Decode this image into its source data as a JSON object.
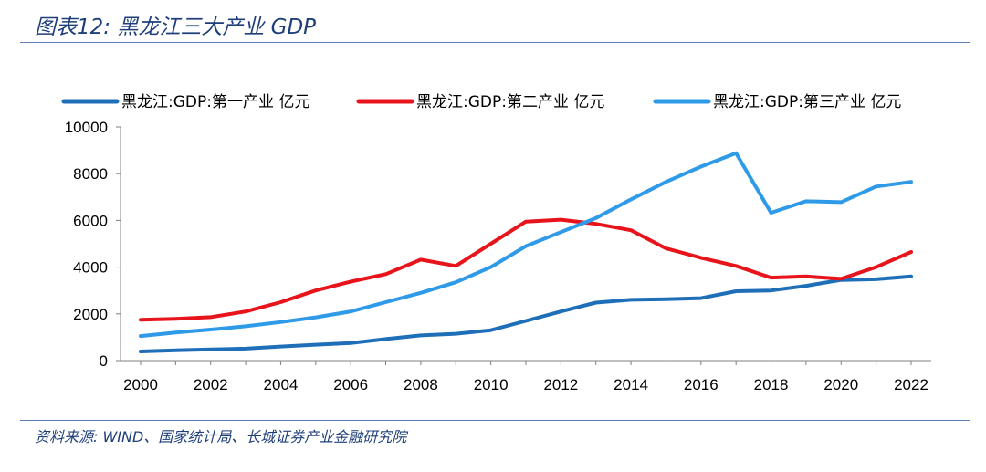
{
  "header": {
    "title": "图表12:  黑龙江三大产业 GDP"
  },
  "footer": {
    "source": "资料来源:  WIND、国家统计局、长城证券产业金融研究院"
  },
  "chart_data": {
    "type": "line",
    "title": "黑龙江三大产业 GDP",
    "xlabel": "",
    "ylabel": "",
    "xlim": [
      2000,
      2022
    ],
    "ylim": [
      0,
      10000
    ],
    "grid": false,
    "legend": "top",
    "xticks": [
      "2000",
      "2002",
      "2004",
      "2006",
      "2008",
      "2010",
      "2012",
      "2014",
      "2016",
      "2018",
      "2020",
      "2022"
    ],
    "yticks": [
      "0",
      "2000",
      "4000",
      "6000",
      "8000",
      "10000"
    ],
    "x": [
      2000,
      2001,
      2002,
      2003,
      2004,
      2005,
      2006,
      2007,
      2008,
      2009,
      2010,
      2011,
      2012,
      2013,
      2014,
      2015,
      2016,
      2017,
      2018,
      2019,
      2020,
      2021,
      2022
    ],
    "series": [
      {
        "name": "黑龙江:GDP:第一产业 亿元",
        "color": "#1f6fb8",
        "values": [
          390,
          440,
          480,
          510,
          600,
          680,
          750,
          920,
          1080,
          1150,
          1300,
          1700,
          2100,
          2480,
          2600,
          2630,
          2670,
          2970,
          3000,
          3200,
          3450,
          3480,
          3600
        ]
      },
      {
        "name": "黑龙江:GDP:第二产业 亿元",
        "color": "#e8141c",
        "values": [
          1750,
          1790,
          1860,
          2100,
          2500,
          3000,
          3380,
          3700,
          4320,
          4050,
          5000,
          5950,
          6030,
          5850,
          5580,
          4800,
          4400,
          4050,
          3550,
          3600,
          3500,
          4000,
          4650
        ]
      },
      {
        "name": "黑龙江:GDP:第三产业 亿元",
        "color": "#2e9ae8",
        "values": [
          1050,
          1200,
          1330,
          1470,
          1650,
          1850,
          2100,
          2500,
          2900,
          3350,
          4000,
          4900,
          5500,
          6100,
          6900,
          7650,
          8300,
          8880,
          6330,
          6820,
          6780,
          7450,
          7650
        ]
      }
    ]
  }
}
